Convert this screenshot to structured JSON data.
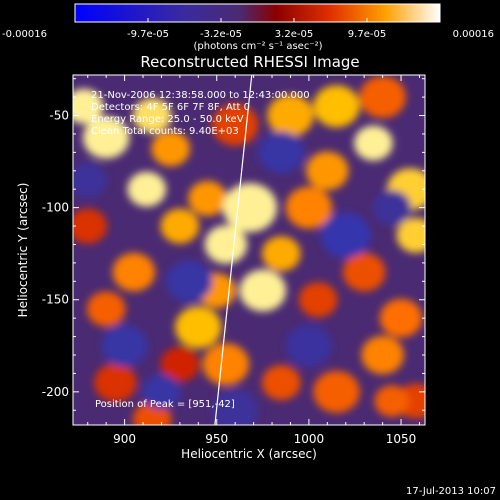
{
  "chart_data": {
    "type": "heatmap",
    "title": "Reconstructed RHESSI Image",
    "xlabel": "Heliocentric X (arcsec)",
    "ylabel": "Heliocentric Y (arcsec)",
    "xlim": [
      872,
      1063
    ],
    "ylim": [
      -218,
      -28
    ],
    "x_ticks": [
      900,
      950,
      1000,
      1050
    ],
    "y_ticks": [
      -50,
      -100,
      -150,
      -200
    ],
    "colorbar": {
      "ticks": [
        "-0.00016",
        "-9.7e-05",
        "-3.2e-05",
        "3.2e-05",
        "9.7e-05",
        "0.00016"
      ],
      "range": [
        -0.00016,
        0.00016
      ],
      "unit_line": "(photons cm⁻² s⁻¹ asec⁻²)"
    },
    "annotations": [
      "21-Nov-2006 12:38:58.000 to 12:43:00.000",
      "Detectors: 4F 5F 6F 7F 8F, Att 0",
      "Energy Range: 25.0 - 50.0 keV",
      "Clean    Total counts: 9.40E+03"
    ],
    "peak_label": "Position of Peak = [951,-42]",
    "limb_line": {
      "x": [
        969,
        949
      ],
      "y": [
        -28,
        -218
      ]
    },
    "blobs": [
      {
        "x": 878,
        "y": -45,
        "v": 1.0,
        "r": 10
      },
      {
        "x": 915,
        "y": -50,
        "v": 0.95,
        "r": 10
      },
      {
        "x": 890,
        "y": -62,
        "v": 1.0,
        "r": 12
      },
      {
        "x": 925,
        "y": -68,
        "v": 0.75,
        "r": 10
      },
      {
        "x": 960,
        "y": -55,
        "v": 0.5,
        "r": 12
      },
      {
        "x": 990,
        "y": -50,
        "v": 0.8,
        "r": 12
      },
      {
        "x": 1015,
        "y": -45,
        "v": 0.85,
        "r": 12
      },
      {
        "x": 1040,
        "y": -40,
        "v": 0.6,
        "r": 12
      },
      {
        "x": 1035,
        "y": -65,
        "v": 1.0,
        "r": 10
      },
      {
        "x": 1055,
        "y": -90,
        "v": 0.9,
        "r": 12
      },
      {
        "x": 1058,
        "y": -115,
        "v": 0.9,
        "r": 10
      },
      {
        "x": 1010,
        "y": -80,
        "v": 0.75,
        "r": 11
      },
      {
        "x": 1000,
        "y": -100,
        "v": 0.7,
        "r": 12
      },
      {
        "x": 912,
        "y": -90,
        "v": 1.0,
        "r": 10
      },
      {
        "x": 930,
        "y": -110,
        "v": 0.8,
        "r": 10
      },
      {
        "x": 945,
        "y": -95,
        "v": 0.75,
        "r": 10
      },
      {
        "x": 968,
        "y": -100,
        "v": 1.0,
        "r": 14
      },
      {
        "x": 955,
        "y": -120,
        "v": 1.0,
        "r": 11
      },
      {
        "x": 985,
        "y": -125,
        "v": 0.8,
        "r": 10
      },
      {
        "x": 975,
        "y": -145,
        "v": 1.0,
        "r": 12
      },
      {
        "x": 950,
        "y": -145,
        "v": 0.75,
        "r": 10
      },
      {
        "x": 940,
        "y": -165,
        "v": 0.85,
        "r": 12
      },
      {
        "x": 955,
        "y": -185,
        "v": 0.7,
        "r": 12
      },
      {
        "x": 905,
        "y": -135,
        "v": 0.7,
        "r": 11
      },
      {
        "x": 890,
        "y": -155,
        "v": 0.6,
        "r": 10
      },
      {
        "x": 1005,
        "y": -150,
        "v": 0.5,
        "r": 10
      },
      {
        "x": 1030,
        "y": -135,
        "v": 0.55,
        "r": 11
      },
      {
        "x": 1050,
        "y": -160,
        "v": 0.65,
        "r": 11
      },
      {
        "x": 1040,
        "y": -180,
        "v": 0.7,
        "r": 11
      },
      {
        "x": 1015,
        "y": -200,
        "v": 0.6,
        "r": 12
      },
      {
        "x": 985,
        "y": -195,
        "v": 0.55,
        "r": 10
      },
      {
        "x": 1058,
        "y": -205,
        "v": 0.5,
        "r": 10
      },
      {
        "x": 895,
        "y": -195,
        "v": 0.45,
        "r": 11
      },
      {
        "x": 915,
        "y": -215,
        "v": 0.55,
        "r": 10
      },
      {
        "x": 930,
        "y": -185,
        "v": 0.4,
        "r": 10
      },
      {
        "x": 880,
        "y": -110,
        "v": 0.45,
        "r": 10
      },
      {
        "x": 1045,
        "y": -205,
        "v": 0.6,
        "r": 9
      },
      {
        "x": 985,
        "y": -70,
        "v": -0.5,
        "r": 12
      },
      {
        "x": 935,
        "y": -140,
        "v": -0.5,
        "r": 12
      },
      {
        "x": 1020,
        "y": -115,
        "v": -0.6,
        "r": 13
      },
      {
        "x": 900,
        "y": -175,
        "v": -0.5,
        "r": 12
      },
      {
        "x": 1000,
        "y": -175,
        "v": -0.45,
        "r": 12
      },
      {
        "x": 960,
        "y": -210,
        "v": -0.4,
        "r": 12
      },
      {
        "x": 1045,
        "y": -100,
        "v": -0.4,
        "r": 10
      },
      {
        "x": 880,
        "y": -85,
        "v": -0.4,
        "r": 10
      },
      {
        "x": 920,
        "y": -200,
        "v": -0.5,
        "r": 10
      }
    ]
  },
  "footer": {
    "date": "17-Jul-2013 10:07"
  }
}
